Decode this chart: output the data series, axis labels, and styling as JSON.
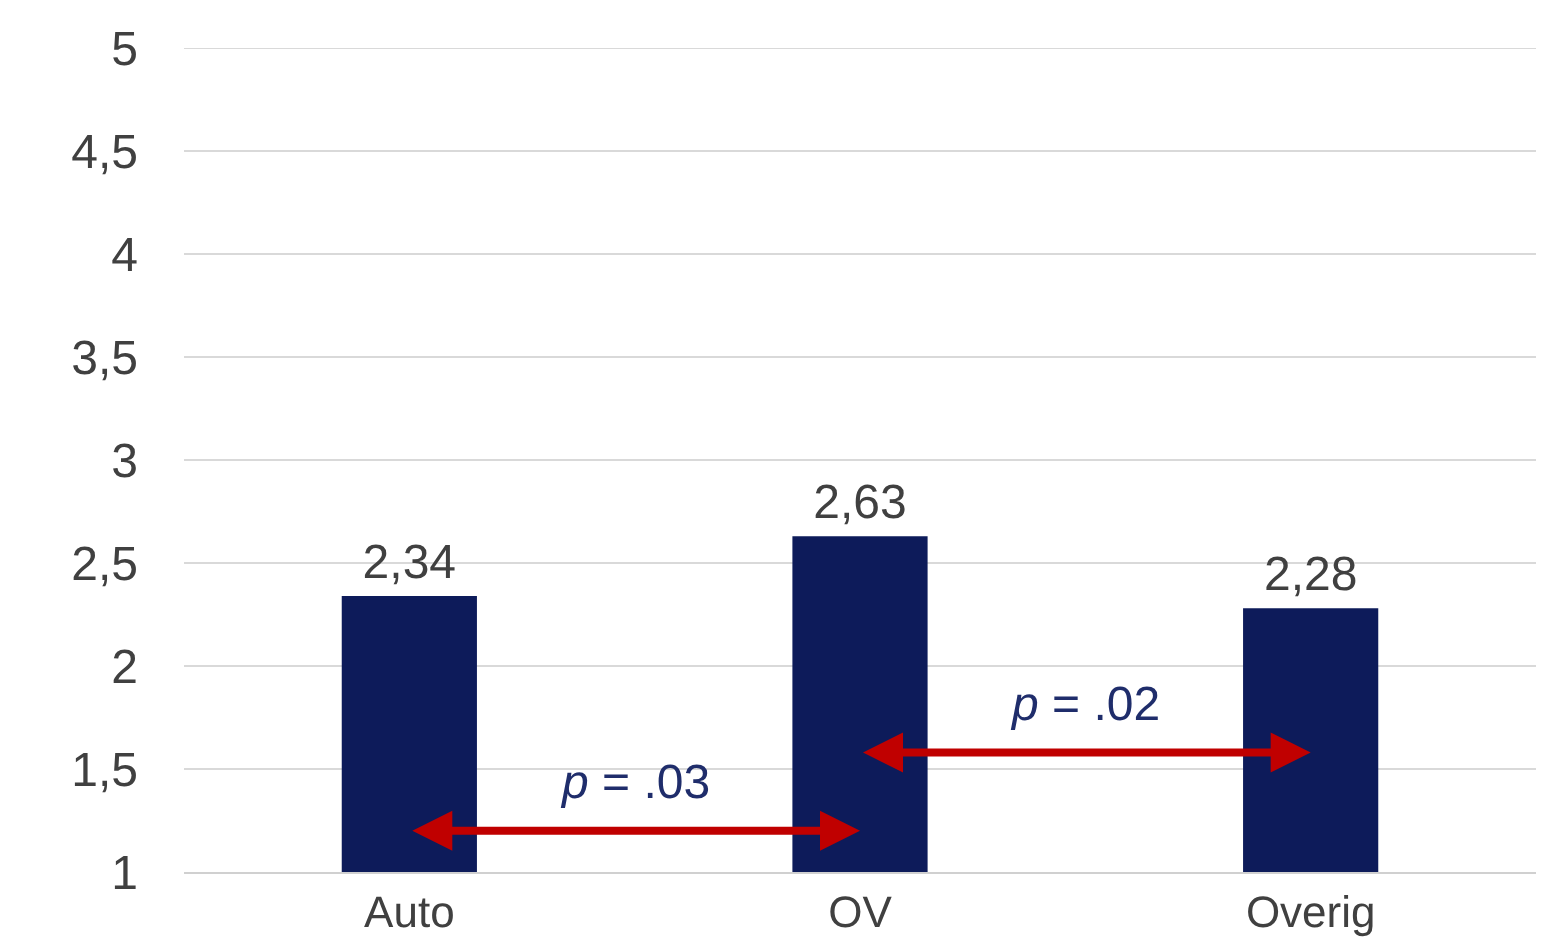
{
  "chart_data": {
    "type": "bar",
    "categories": [
      "Auto",
      "OV",
      "Overig"
    ],
    "values": [
      2.34,
      2.63,
      2.28
    ],
    "color": "#0d1b5a",
    "value_labels": [
      "2,34",
      "2,63",
      "2,28"
    ],
    "ylim": [
      1,
      5
    ],
    "yticks": [
      1,
      {
        "value": 1.5,
        "label": "1,5"
      },
      2,
      {
        "value": 2.5,
        "label": "2,5"
      },
      3,
      {
        "value": 3.5,
        "label": "3,5"
      },
      4,
      {
        "value": 4.5,
        "label": "4,5"
      },
      5
    ],
    "grid": "y",
    "annotations": [
      "p = .03",
      "p = .02"
    ]
  }
}
